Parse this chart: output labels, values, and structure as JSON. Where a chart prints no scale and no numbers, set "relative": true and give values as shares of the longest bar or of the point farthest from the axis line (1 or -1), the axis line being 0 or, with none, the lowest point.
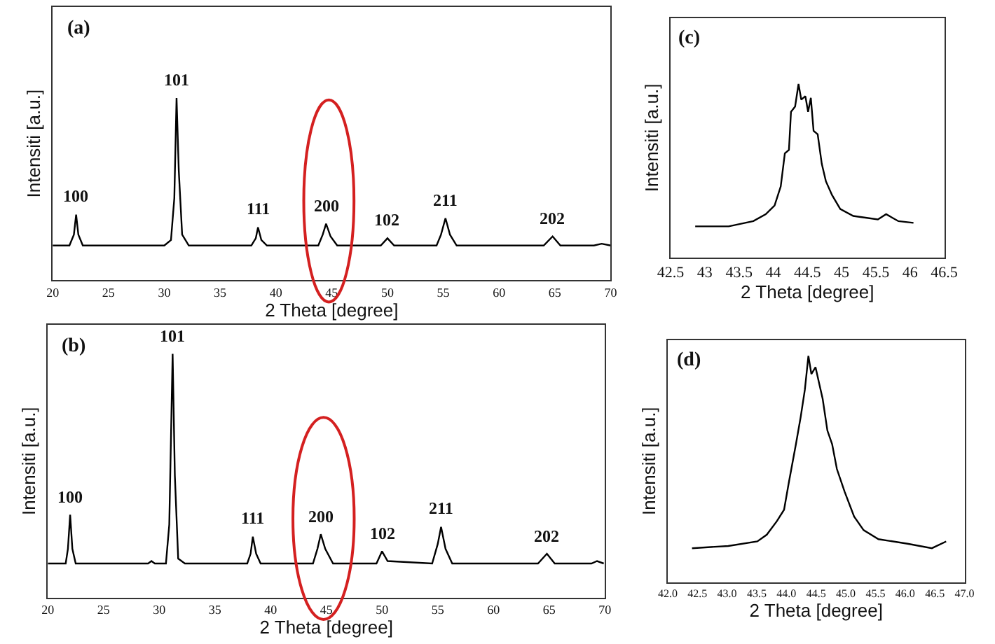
{
  "chart_data": [
    {
      "type": "line",
      "title": "(a)",
      "xlabel": "2 Theta [degree]",
      "ylabel": "Intensiti [a.u.]",
      "relative": true,
      "xlim": [
        20,
        70
      ],
      "xticks": [
        20,
        25,
        30,
        35,
        40,
        45,
        50,
        55,
        60,
        65,
        70
      ],
      "series": [
        {
          "color": "#000000",
          "x": [
            20.0,
            21.5,
            21.9,
            22.1,
            22.3,
            22.7,
            30.0,
            30.6,
            30.9,
            31.1,
            31.3,
            31.6,
            32.2,
            37.8,
            38.2,
            38.4,
            38.7,
            39.2,
            43.8,
            44.2,
            44.5,
            44.9,
            45.5,
            49.4,
            50.0,
            50.6,
            54.4,
            54.8,
            55.2,
            55.6,
            56.2,
            64.0,
            64.8,
            65.5,
            68.5,
            69.2,
            70.0
          ],
          "values": [
            0.19,
            0.19,
            0.25,
            0.36,
            0.25,
            0.19,
            0.19,
            0.22,
            0.45,
            1.0,
            0.6,
            0.25,
            0.19,
            0.19,
            0.23,
            0.29,
            0.22,
            0.19,
            0.19,
            0.25,
            0.31,
            0.24,
            0.19,
            0.19,
            0.23,
            0.19,
            0.19,
            0.25,
            0.34,
            0.25,
            0.19,
            0.19,
            0.24,
            0.19,
            0.19,
            0.2,
            0.19
          ]
        }
      ],
      "annotations": [
        {
          "text": "100",
          "x": 22.1,
          "y": 0.36
        },
        {
          "text": "101",
          "x": 31.1,
          "y": 1.0
        },
        {
          "text": "111",
          "x": 38.4,
          "y": 0.29
        },
        {
          "text": "200",
          "x": 44.5,
          "y": 0.31
        },
        {
          "text": "102",
          "x": 50.0,
          "y": 0.23
        },
        {
          "text": "211",
          "x": 55.2,
          "y": 0.34
        },
        {
          "text": "202",
          "x": 64.8,
          "y": 0.24
        }
      ]
    },
    {
      "type": "line",
      "title": "(b)",
      "xlabel": "2 Theta [degree]",
      "ylabel": "Intensiti [a.u.]",
      "relative": true,
      "xlim": [
        20,
        70
      ],
      "xticks": [
        20,
        25,
        30,
        35,
        40,
        45,
        50,
        55,
        60,
        65,
        70
      ],
      "series": [
        {
          "color": "#000000",
          "x": [
            20.0,
            21.6,
            21.8,
            22.0,
            22.2,
            22.5,
            29.0,
            29.3,
            29.6,
            30.6,
            30.9,
            31.2,
            31.4,
            31.7,
            32.3,
            37.9,
            38.2,
            38.4,
            38.7,
            39.1,
            43.8,
            44.2,
            44.5,
            44.9,
            45.6,
            49.5,
            50.0,
            50.5,
            54.5,
            55.0,
            55.3,
            55.7,
            56.3,
            64.0,
            64.8,
            65.5,
            68.8,
            69.3,
            69.9
          ],
          "values": [
            0.14,
            0.14,
            0.2,
            0.34,
            0.2,
            0.14,
            0.14,
            0.15,
            0.14,
            0.14,
            0.3,
            1.0,
            0.5,
            0.16,
            0.14,
            0.14,
            0.18,
            0.25,
            0.18,
            0.14,
            0.14,
            0.2,
            0.26,
            0.2,
            0.14,
            0.14,
            0.19,
            0.15,
            0.14,
            0.22,
            0.29,
            0.2,
            0.14,
            0.14,
            0.18,
            0.14,
            0.14,
            0.15,
            0.14
          ]
        }
      ],
      "annotations": [
        {
          "text": "100",
          "x": 22.0,
          "y": 0.34
        },
        {
          "text": "101",
          "x": 31.2,
          "y": 1.0
        },
        {
          "text": "111",
          "x": 38.4,
          "y": 0.25
        },
        {
          "text": "200",
          "x": 44.5,
          "y": 0.26
        },
        {
          "text": "102",
          "x": 50.0,
          "y": 0.19
        },
        {
          "text": "211",
          "x": 55.3,
          "y": 0.29
        },
        {
          "text": "202",
          "x": 64.8,
          "y": 0.18
        }
      ]
    },
    {
      "type": "line",
      "title": "(c)",
      "xlabel": "2 Theta [degree]",
      "ylabel": "Intensiti [a.u.]",
      "relative": true,
      "xlim": [
        42.5,
        46.5
      ],
      "xticks": [
        42.5,
        43,
        43.5,
        44,
        44.5,
        45,
        45.5,
        46,
        46.5
      ],
      "series": [
        {
          "color": "#000000",
          "x": [
            42.86,
            43.35,
            43.71,
            43.89,
            44.02,
            44.11,
            44.17,
            44.23,
            44.26,
            44.32,
            44.37,
            44.41,
            44.47,
            44.51,
            44.55,
            44.59,
            44.65,
            44.71,
            44.77,
            44.86,
            44.98,
            45.17,
            45.53,
            45.65,
            45.83,
            46.05
          ],
          "values": [
            0.18,
            0.18,
            0.21,
            0.25,
            0.3,
            0.41,
            0.6,
            0.62,
            0.84,
            0.87,
            1.0,
            0.91,
            0.93,
            0.84,
            0.92,
            0.73,
            0.71,
            0.54,
            0.44,
            0.36,
            0.28,
            0.24,
            0.22,
            0.25,
            0.21,
            0.2
          ]
        }
      ]
    },
    {
      "type": "line",
      "title": "(d)",
      "xlabel": "2 Theta [degree]",
      "ylabel": "Intensiti [a.u.]",
      "relative": true,
      "xlim": [
        42.0,
        47.0
      ],
      "xticks": [
        {
          "value": 42.0,
          "label": "42.0"
        },
        {
          "value": 42.5,
          "label": "42.5"
        },
        {
          "value": 43.0,
          "label": "43.0"
        },
        {
          "value": 43.5,
          "label": "43.5"
        },
        {
          "value": 44.0,
          "label": "44.0"
        },
        {
          "value": 44.5,
          "label": "44.5"
        },
        {
          "value": 45.0,
          "label": "45.0"
        },
        {
          "value": 45.5,
          "label": "45.5"
        },
        {
          "value": 46.0,
          "label": "46.0"
        },
        {
          "value": 46.5,
          "label": "46.5"
        },
        {
          "value": 47.0,
          "label": "47.0"
        }
      ],
      "series": [
        {
          "color": "#000000",
          "x": [
            42.41,
            43.02,
            43.51,
            43.67,
            43.84,
            43.96,
            44.04,
            44.16,
            44.24,
            44.31,
            44.37,
            44.42,
            44.49,
            44.55,
            44.61,
            44.69,
            44.77,
            44.85,
            44.98,
            45.14,
            45.3,
            45.55,
            46.04,
            46.45,
            46.69
          ],
          "values": [
            0.15,
            0.16,
            0.18,
            0.21,
            0.27,
            0.32,
            0.44,
            0.61,
            0.73,
            0.85,
            1.0,
            0.92,
            0.95,
            0.88,
            0.81,
            0.67,
            0.61,
            0.5,
            0.4,
            0.29,
            0.23,
            0.19,
            0.17,
            0.15,
            0.18
          ]
        }
      ]
    }
  ]
}
